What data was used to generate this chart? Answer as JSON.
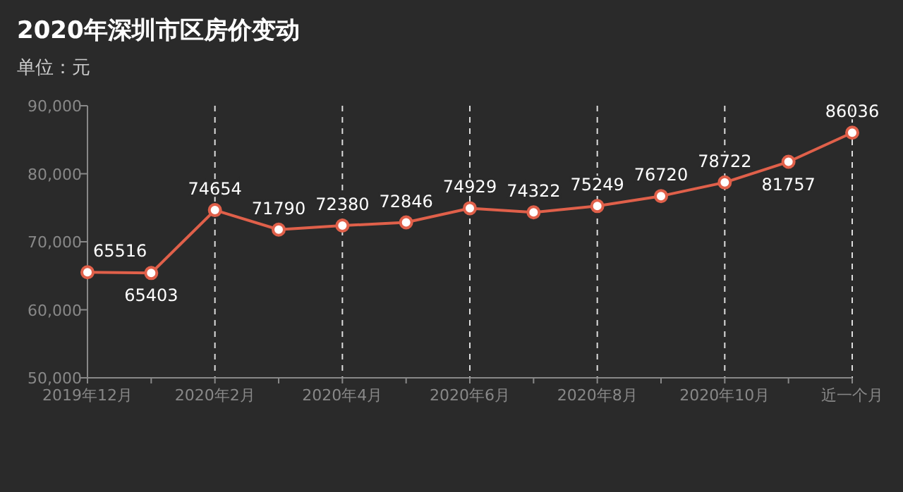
{
  "chart_data": {
    "type": "line",
    "title": "2020年深圳市区房价变动",
    "subtitle": "单位：元",
    "categories": [
      "2019年12月",
      null,
      "2020年2月",
      null,
      "2020年4月",
      null,
      "2020年6月",
      null,
      "2020年8月",
      null,
      "2020年10月",
      null,
      "近一个月"
    ],
    "series": [
      {
        "color": "#e0604a",
        "values": [
          65516,
          65403,
          74654,
          71790,
          72380,
          72846,
          74929,
          74322,
          75249,
          76720,
          78722,
          81757,
          86036
        ]
      }
    ],
    "ylim": [
      50000,
      90000
    ],
    "yticks": [
      {
        "value": 50000,
        "label": "50,000"
      },
      {
        "value": 60000,
        "label": "60,000"
      },
      {
        "value": 70000,
        "label": "70,000"
      },
      {
        "value": 80000,
        "label": "80,000"
      },
      {
        "value": 90000,
        "label": "90,000"
      }
    ],
    "grid": "x",
    "marker": "circle",
    "line_style": "solid",
    "data_labels": true
  }
}
